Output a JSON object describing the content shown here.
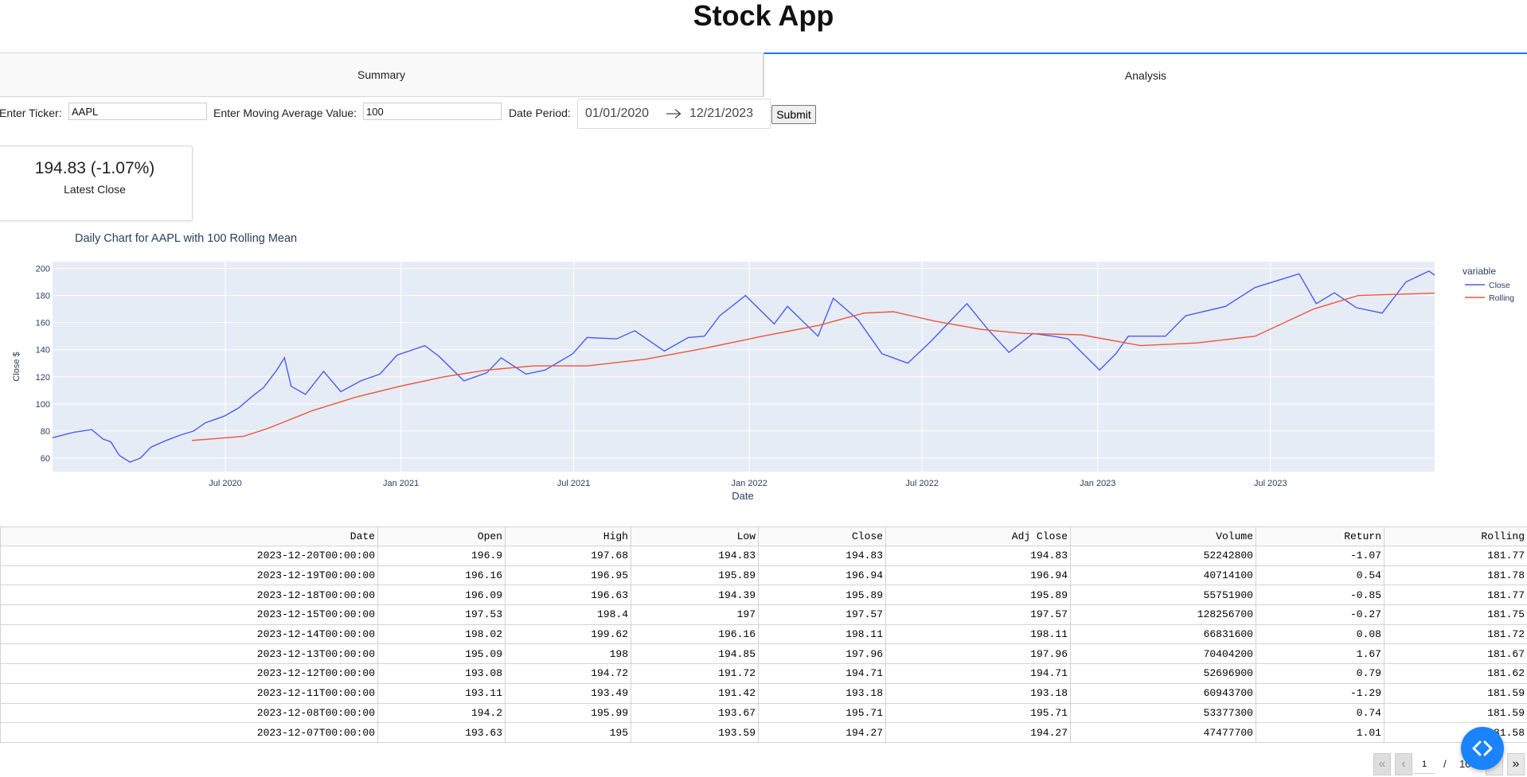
{
  "app": {
    "title": "Stock App"
  },
  "tabs": [
    {
      "label": "Summary",
      "active": false
    },
    {
      "label": "Analysis",
      "active": true
    }
  ],
  "controls": {
    "ticker_label": "Enter Ticker:",
    "ticker_value": "AAPL",
    "ma_label": "Enter Moving Average Value:",
    "ma_value": "100",
    "date_label": "Date Period:",
    "start_date": "01/01/2020",
    "end_date": "12/21/2023",
    "submit_label": "Submit"
  },
  "card": {
    "value": "194.83 (-1.07%)",
    "label": "Latest Close"
  },
  "chart_data": {
    "type": "line",
    "title": "Daily Chart for AAPL with 100 Rolling Mean",
    "xlabel": "Date",
    "ylabel": "Close $",
    "xlim": [
      "2020-01-02",
      "2023-12-20"
    ],
    "ylim": [
      50,
      205
    ],
    "x_ticks": [
      {
        "date": "2020-07-01",
        "label": "Jul 2020"
      },
      {
        "date": "2021-01-01",
        "label": "Jan 2021"
      },
      {
        "date": "2021-07-01",
        "label": "Jul 2021"
      },
      {
        "date": "2022-01-01",
        "label": "Jan 2022"
      },
      {
        "date": "2022-07-01",
        "label": "Jul 2022"
      },
      {
        "date": "2023-01-01",
        "label": "Jan 2023"
      },
      {
        "date": "2023-07-01",
        "label": "Jul 2023"
      }
    ],
    "y_ticks": [
      60,
      80,
      100,
      120,
      140,
      160,
      180,
      200
    ],
    "grid": true,
    "legend": {
      "title": "variable",
      "position": "right"
    },
    "plot_bg": "#e5ecf6",
    "series": [
      {
        "name": "Close",
        "color": "#4a5bf0",
        "points": [
          [
            "2020-01-02",
            75
          ],
          [
            "2020-01-24",
            79
          ],
          [
            "2020-02-12",
            81
          ],
          [
            "2020-02-24",
            74
          ],
          [
            "2020-03-03",
            72
          ],
          [
            "2020-03-12",
            62
          ],
          [
            "2020-03-23",
            57
          ],
          [
            "2020-04-03",
            60
          ],
          [
            "2020-04-14",
            68
          ],
          [
            "2020-04-30",
            73
          ],
          [
            "2020-05-15",
            77
          ],
          [
            "2020-05-29",
            80
          ],
          [
            "2020-06-10",
            86
          ],
          [
            "2020-06-30",
            91
          ],
          [
            "2020-07-15",
            97
          ],
          [
            "2020-07-30",
            106
          ],
          [
            "2020-08-10",
            112
          ],
          [
            "2020-08-24",
            125
          ],
          [
            "2020-09-01",
            134
          ],
          [
            "2020-09-08",
            113
          ],
          [
            "2020-09-23",
            107
          ],
          [
            "2020-10-12",
            124
          ],
          [
            "2020-10-30",
            109
          ],
          [
            "2020-11-20",
            117
          ],
          [
            "2020-12-10",
            122
          ],
          [
            "2020-12-28",
            136
          ],
          [
            "2021-01-26",
            143
          ],
          [
            "2021-02-10",
            135
          ],
          [
            "2021-03-08",
            117
          ],
          [
            "2021-04-01",
            123
          ],
          [
            "2021-04-16",
            134
          ],
          [
            "2021-05-12",
            122
          ],
          [
            "2021-06-01",
            125
          ],
          [
            "2021-06-30",
            137
          ],
          [
            "2021-07-15",
            149
          ],
          [
            "2021-08-15",
            148
          ],
          [
            "2021-09-03",
            154
          ],
          [
            "2021-10-04",
            139
          ],
          [
            "2021-10-29",
            149
          ],
          [
            "2021-11-15",
            150
          ],
          [
            "2021-12-01",
            165
          ],
          [
            "2021-12-28",
            180
          ],
          [
            "2022-01-27",
            159
          ],
          [
            "2022-02-10",
            172
          ],
          [
            "2022-03-14",
            150
          ],
          [
            "2022-03-30",
            178
          ],
          [
            "2022-04-25",
            162
          ],
          [
            "2022-05-20",
            137
          ],
          [
            "2022-06-16",
            130
          ],
          [
            "2022-07-10",
            146
          ],
          [
            "2022-08-17",
            174
          ],
          [
            "2022-09-08",
            155
          ],
          [
            "2022-09-30",
            138
          ],
          [
            "2022-10-25",
            152
          ],
          [
            "2022-11-15",
            150
          ],
          [
            "2022-12-01",
            148
          ],
          [
            "2023-01-03",
            125
          ],
          [
            "2023-01-20",
            137
          ],
          [
            "2023-02-02",
            150
          ],
          [
            "2023-03-13",
            150
          ],
          [
            "2023-04-03",
            165
          ],
          [
            "2023-05-15",
            172
          ],
          [
            "2023-06-15",
            186
          ],
          [
            "2023-07-31",
            196
          ],
          [
            "2023-08-18",
            174
          ],
          [
            "2023-09-06",
            182
          ],
          [
            "2023-09-29",
            171
          ],
          [
            "2023-10-26",
            167
          ],
          [
            "2023-11-20",
            190
          ],
          [
            "2023-12-14",
            198
          ],
          [
            "2023-12-20",
            195
          ]
        ]
      },
      {
        "name": "Rolling",
        "color": "#ef553b",
        "points": [
          [
            "2020-05-27",
            73
          ],
          [
            "2020-06-15",
            74
          ],
          [
            "2020-07-20",
            76
          ],
          [
            "2020-08-15",
            82
          ],
          [
            "2020-09-30",
            95
          ],
          [
            "2020-11-15",
            105
          ],
          [
            "2020-12-31",
            113
          ],
          [
            "2021-02-15",
            120
          ],
          [
            "2021-04-01",
            125
          ],
          [
            "2021-05-20",
            128
          ],
          [
            "2021-07-15",
            128
          ],
          [
            "2021-09-15",
            133
          ],
          [
            "2021-11-15",
            141
          ],
          [
            "2022-01-15",
            150
          ],
          [
            "2022-03-15",
            158
          ],
          [
            "2022-05-01",
            167
          ],
          [
            "2022-06-01",
            168
          ],
          [
            "2022-07-15",
            161
          ],
          [
            "2022-09-01",
            155
          ],
          [
            "2022-10-15",
            152
          ],
          [
            "2022-12-15",
            151
          ],
          [
            "2023-02-15",
            143
          ],
          [
            "2023-04-15",
            145
          ],
          [
            "2023-06-15",
            150
          ],
          [
            "2023-08-15",
            170
          ],
          [
            "2023-10-01",
            180
          ],
          [
            "2023-11-15",
            181
          ],
          [
            "2023-12-20",
            181.77
          ]
        ]
      }
    ]
  },
  "table": {
    "columns": [
      "Date",
      "Open",
      "High",
      "Low",
      "Close",
      "Adj Close",
      "Volume",
      "Return",
      "Rolling"
    ],
    "rows": [
      [
        "2023-12-20T00:00:00",
        "196.9",
        "197.68",
        "194.83",
        "194.83",
        "194.83",
        "52242800",
        "-1.07",
        "181.77"
      ],
      [
        "2023-12-19T00:00:00",
        "196.16",
        "196.95",
        "195.89",
        "196.94",
        "196.94",
        "40714100",
        "0.54",
        "181.78"
      ],
      [
        "2023-12-18T00:00:00",
        "196.09",
        "196.63",
        "194.39",
        "195.89",
        "195.89",
        "55751900",
        "-0.85",
        "181.77"
      ],
      [
        "2023-12-15T00:00:00",
        "197.53",
        "198.4",
        "197",
        "197.57",
        "197.57",
        "128256700",
        "-0.27",
        "181.75"
      ],
      [
        "2023-12-14T00:00:00",
        "198.02",
        "199.62",
        "196.16",
        "198.11",
        "198.11",
        "66831600",
        "0.08",
        "181.72"
      ],
      [
        "2023-12-13T00:00:00",
        "195.09",
        "198",
        "194.85",
        "197.96",
        "197.96",
        "70404200",
        "1.67",
        "181.67"
      ],
      [
        "2023-12-12T00:00:00",
        "193.08",
        "194.72",
        "191.72",
        "194.71",
        "194.71",
        "52696900",
        "0.79",
        "181.62"
      ],
      [
        "2023-12-11T00:00:00",
        "193.11",
        "193.49",
        "191.42",
        "193.18",
        "193.18",
        "60943700",
        "-1.29",
        "181.59"
      ],
      [
        "2023-12-08T00:00:00",
        "194.2",
        "195.99",
        "193.67",
        "195.71",
        "195.71",
        "53377300",
        "0.74",
        "181.59"
      ],
      [
        "2023-12-07T00:00:00",
        "193.63",
        "195",
        "193.59",
        "194.27",
        "194.27",
        "47477700",
        "1.01",
        "181.58"
      ]
    ]
  },
  "pager": {
    "current_page": "1",
    "separator": "/",
    "total_pages": "10"
  }
}
